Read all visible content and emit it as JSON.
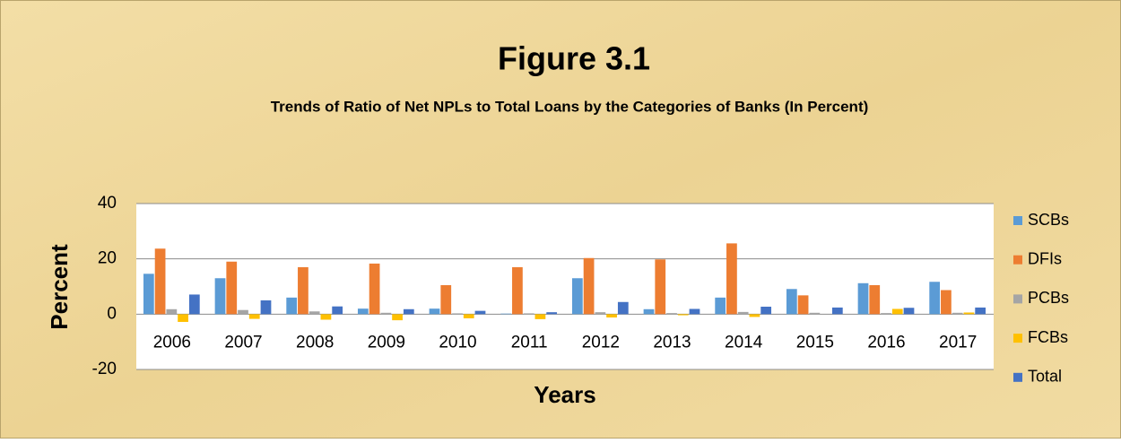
{
  "chart_data": {
    "type": "bar",
    "title": "Figure 3.1",
    "subtitle": "Trends of Ratio of Net NPLs to Total Loans by the Categories of Banks (In Percent)",
    "x_label": "Years",
    "y_label": "Percent",
    "categories": [
      "2006",
      "2007",
      "2008",
      "2009",
      "2010",
      "2011",
      "2012",
      "2013",
      "2014",
      "2015",
      "2016",
      "2017"
    ],
    "series": [
      {
        "name": "SCBs",
        "color": "#5b9bd5",
        "values": [
          14.6,
          13,
          6,
          2,
          2,
          0.2,
          13,
          1.8,
          6,
          9.1,
          11.2,
          11.7
        ]
      },
      {
        "name": "DFIs",
        "color": "#ed7d31",
        "values": [
          23.7,
          19,
          17,
          18.3,
          10.5,
          17,
          20.3,
          19.8,
          25.6,
          6.8,
          10.5,
          8.7
        ]
      },
      {
        "name": "PCBs",
        "color": "#a5a5a5",
        "values": [
          1.8,
          1.5,
          1,
          0.5,
          0.3,
          0.3,
          0.7,
          0.4,
          0.8,
          0.5,
          0.4,
          0.5
        ]
      },
      {
        "name": "FCBs",
        "color": "#ffc000",
        "values": [
          -2.8,
          -1.7,
          -2,
          -2.2,
          -1.5,
          -1.8,
          -1.2,
          -0.4,
          -1,
          0,
          1.9,
          0.6
        ]
      },
      {
        "name": "Total",
        "color": "#4472c4",
        "values": [
          7.1,
          5,
          2.8,
          1.8,
          1.2,
          0.7,
          4.4,
          1.9,
          2.7,
          2.4,
          2.3,
          2.4
        ]
      }
    ],
    "ylim": [
      -20,
      40
    ],
    "yticks": [
      -20,
      0,
      20,
      40
    ],
    "grid": true,
    "legend": "right"
  }
}
